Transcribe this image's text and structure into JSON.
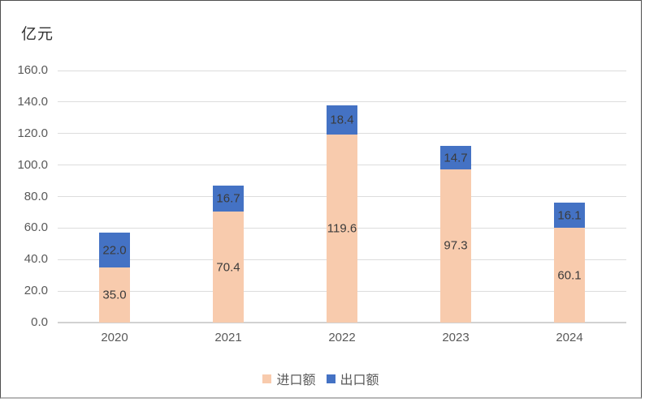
{
  "chart_data": {
    "type": "bar",
    "stacked": true,
    "title": "亿元",
    "categories": [
      "2020",
      "2021",
      "2022",
      "2023",
      "2024"
    ],
    "series": [
      {
        "name": "进口额",
        "color": "#F8CBAD",
        "values": [
          35.0,
          70.4,
          119.6,
          97.3,
          60.1
        ],
        "value_labels": [
          "35.0",
          "70.4",
          "119.6",
          "97.3",
          "60.1"
        ]
      },
      {
        "name": "出口额",
        "color": "#4472C4",
        "values": [
          22.0,
          16.7,
          18.4,
          14.7,
          16.1
        ],
        "value_labels": [
          "22.0",
          "16.7",
          "18.4",
          "14.7",
          "16.1"
        ]
      }
    ],
    "ylim": [
      0,
      160
    ],
    "yticks": [
      0,
      20,
      40,
      60,
      80,
      100,
      120,
      140,
      160
    ],
    "ytick_labels": [
      "0.0",
      "20.0",
      "40.0",
      "60.0",
      "80.0",
      "100.0",
      "120.0",
      "140.0",
      "160.0"
    ],
    "grid": true,
    "legend_position": "bottom",
    "colors": {
      "grid": "#DCDCDC",
      "axis_line": "#D2D2D2",
      "tick_label": "#595959",
      "data_label": "#3B3B3B",
      "title": "#333333",
      "background": "#FFFFFF",
      "frame_border": "#4F4F4F"
    }
  }
}
